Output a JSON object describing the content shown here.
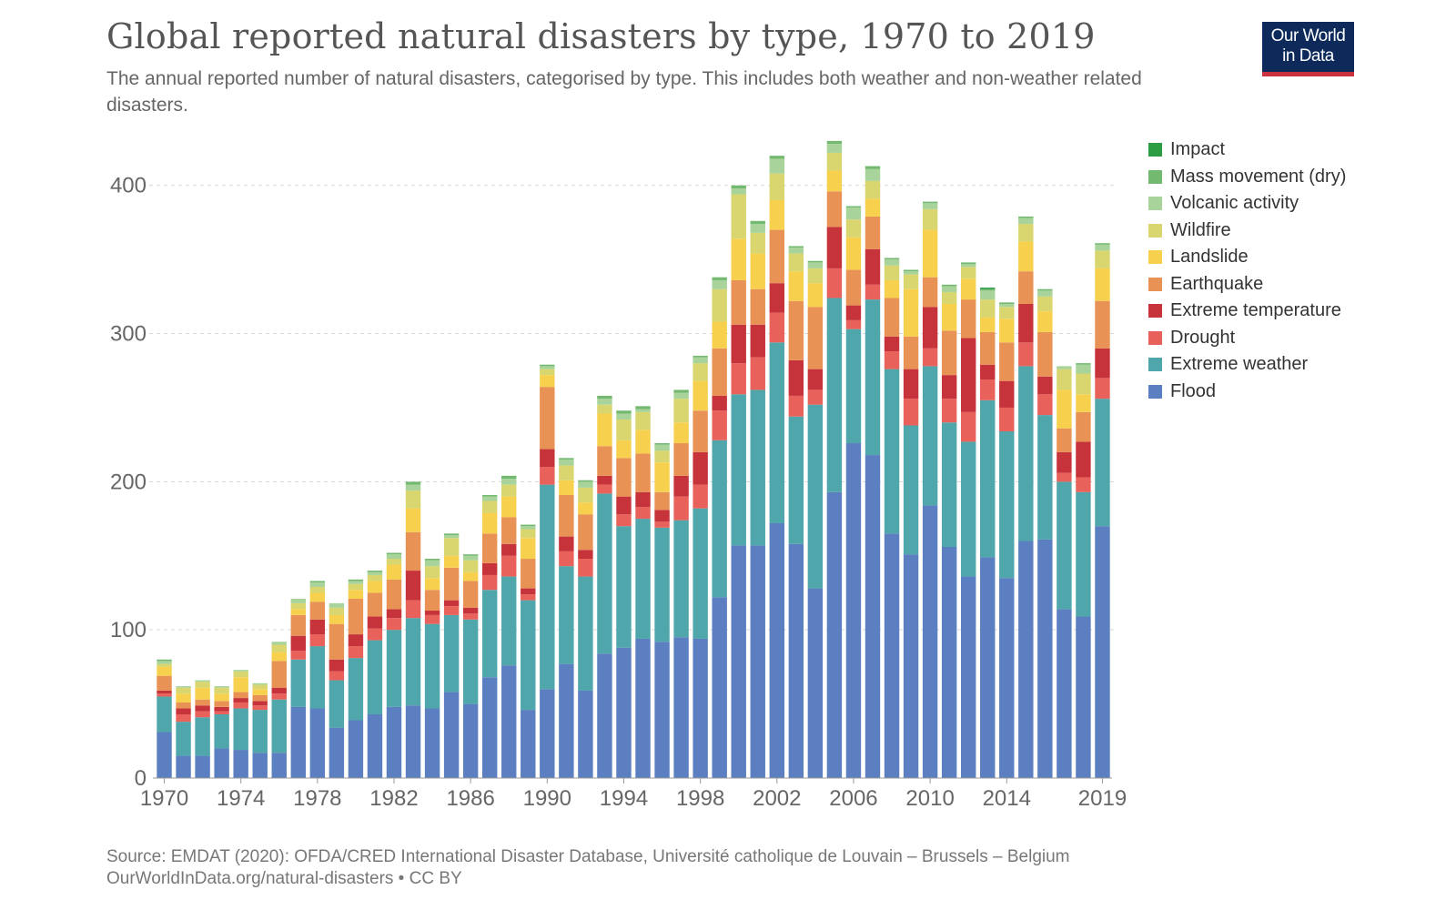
{
  "header": {
    "title": "Global reported natural disasters by type, 1970 to 2019",
    "subtitle": "The annual reported number of natural disasters, categorised by type. This includes both weather and non-weather related disasters.",
    "logo_line1": "Our World",
    "logo_line2": "in Data"
  },
  "footer": {
    "source": "Source: EMDAT (2020): OFDA/CRED International Disaster Database, Université catholique de Louvain – Brussels – Belgium",
    "url": "OurWorldInData.org/natural-disasters • CC BY"
  },
  "legend_order": [
    "Impact",
    "Mass movement (dry)",
    "Volcanic activity",
    "Wildfire",
    "Landslide",
    "Earthquake",
    "Extreme temperature",
    "Drought",
    "Extreme weather",
    "Flood"
  ],
  "chart_data": {
    "type": "bar",
    "stacked": true,
    "title": "Global reported natural disasters by type, 1970 to 2019",
    "xlabel": "",
    "ylabel": "",
    "ylim": [
      0,
      433
    ],
    "yticks": [
      0,
      100,
      200,
      300,
      400
    ],
    "xtick_labels": [
      "1970",
      "1974",
      "1978",
      "1982",
      "1986",
      "1990",
      "1994",
      "1998",
      "2002",
      "2006",
      "2010",
      "2014",
      "2019"
    ],
    "grid": true,
    "legend_position": "right",
    "categories": [
      "1970",
      "1971",
      "1972",
      "1973",
      "1974",
      "1975",
      "1976",
      "1977",
      "1978",
      "1979",
      "1980",
      "1981",
      "1982",
      "1983",
      "1984",
      "1985",
      "1986",
      "1987",
      "1988",
      "1989",
      "1990",
      "1991",
      "1992",
      "1993",
      "1994",
      "1995",
      "1996",
      "1997",
      "1998",
      "1999",
      "2000",
      "2001",
      "2002",
      "2003",
      "2004",
      "2005",
      "2006",
      "2007",
      "2008",
      "2009",
      "2010",
      "2011",
      "2012",
      "2013",
      "2014",
      "2015",
      "2016",
      "2017",
      "2018",
      "2019"
    ],
    "series": [
      {
        "name": "Flood",
        "color": "#5b7fc0",
        "values": [
          31,
          15,
          15,
          20,
          19,
          17,
          17,
          48,
          47,
          34,
          39,
          43,
          48,
          49,
          47,
          58,
          50,
          68,
          76,
          46,
          60,
          77,
          59,
          84,
          88,
          94,
          92,
          95,
          94,
          122,
          157,
          157,
          172,
          158,
          128,
          193,
          226,
          218,
          165,
          151,
          184,
          156,
          136,
          149,
          135,
          160,
          161,
          114,
          109,
          170
        ]
      },
      {
        "name": "Extreme weather",
        "color": "#4fa6ab",
        "values": [
          24,
          23,
          26,
          23,
          28,
          29,
          36,
          32,
          42,
          32,
          42,
          50,
          52,
          59,
          57,
          52,
          57,
          59,
          60,
          74,
          138,
          66,
          77,
          108,
          82,
          81,
          77,
          79,
          88,
          106,
          102,
          105,
          122,
          86,
          124,
          131,
          77,
          105,
          111,
          87,
          94,
          84,
          91,
          106,
          99,
          118,
          84,
          86,
          84,
          86
        ]
      },
      {
        "name": "Drought",
        "color": "#e8615a",
        "values": [
          2,
          5,
          4,
          2,
          4,
          3,
          4,
          6,
          8,
          6,
          8,
          8,
          8,
          12,
          6,
          6,
          4,
          10,
          14,
          4,
          12,
          10,
          12,
          6,
          8,
          8,
          4,
          16,
          16,
          20,
          21,
          22,
          20,
          14,
          10,
          20,
          6,
          10,
          12,
          18,
          12,
          16,
          20,
          14,
          16,
          16,
          14,
          6,
          10,
          14
        ]
      },
      {
        "name": "Extreme temperature",
        "color": "#c7333b",
        "values": [
          2,
          4,
          4,
          3,
          3,
          3,
          4,
          10,
          10,
          8,
          8,
          8,
          6,
          20,
          3,
          4,
          4,
          8,
          8,
          4,
          12,
          10,
          6,
          6,
          12,
          10,
          8,
          14,
          22,
          10,
          26,
          22,
          20,
          24,
          14,
          28,
          10,
          24,
          10,
          20,
          28,
          16,
          50,
          10,
          18,
          26,
          12,
          14,
          24,
          20
        ]
      },
      {
        "name": "Earthquake",
        "color": "#e89355",
        "values": [
          10,
          4,
          4,
          4,
          4,
          4,
          18,
          14,
          12,
          24,
          24,
          16,
          20,
          26,
          14,
          22,
          18,
          20,
          18,
          20,
          42,
          28,
          24,
          20,
          26,
          26,
          12,
          22,
          28,
          32,
          30,
          24,
          36,
          40,
          42,
          24,
          24,
          22,
          26,
          22,
          20,
          30,
          26,
          22,
          26,
          22,
          30,
          16,
          20,
          32
        ]
      },
      {
        "name": "Landslide",
        "color": "#f7d14e",
        "values": [
          6,
          6,
          8,
          5,
          10,
          4,
          6,
          4,
          6,
          6,
          6,
          8,
          10,
          16,
          8,
          8,
          6,
          14,
          14,
          14,
          8,
          10,
          8,
          22,
          12,
          16,
          20,
          14,
          20,
          18,
          28,
          24,
          20,
          20,
          16,
          14,
          22,
          12,
          12,
          32,
          32,
          18,
          14,
          10,
          16,
          20,
          14,
          26,
          12,
          22
        ]
      },
      {
        "name": "Wildfire",
        "color": "#d9d56f",
        "values": [
          2,
          4,
          4,
          4,
          4,
          3,
          5,
          4,
          4,
          5,
          4,
          4,
          4,
          12,
          8,
          12,
          8,
          8,
          8,
          6,
          4,
          10,
          10,
          6,
          14,
          12,
          8,
          16,
          12,
          22,
          30,
          14,
          18,
          12,
          10,
          12,
          12,
          12,
          10,
          10,
          14,
          8,
          8,
          12,
          8,
          12,
          10,
          14,
          14,
          12
        ]
      },
      {
        "name": "Volcanic activity",
        "color": "#a8d39a",
        "values": [
          2,
          1,
          1,
          1,
          1,
          1,
          2,
          3,
          3,
          3,
          2,
          2,
          3,
          4,
          4,
          2,
          3,
          3,
          4,
          2,
          2,
          4,
          4,
          4,
          4,
          2,
          4,
          4,
          4,
          6,
          4,
          6,
          10,
          4,
          4,
          6,
          8,
          8,
          4,
          2,
          4,
          4,
          2,
          6,
          2,
          4,
          4,
          2,
          6,
          4
        ]
      },
      {
        "name": "Mass movement (dry)",
        "color": "#73b96f",
        "values": [
          1,
          0,
          0,
          0,
          0,
          0,
          0,
          0,
          1,
          0,
          1,
          1,
          1,
          2,
          1,
          1,
          1,
          1,
          2,
          1,
          1,
          1,
          1,
          2,
          2,
          2,
          1,
          2,
          1,
          2,
          2,
          2,
          2,
          1,
          1,
          2,
          1,
          2,
          1,
          1,
          1,
          1,
          1,
          1,
          1,
          1,
          1,
          0,
          1,
          1
        ]
      },
      {
        "name": "Impact",
        "color": "#2d9d44",
        "values": [
          0,
          0,
          0,
          0,
          0,
          0,
          0,
          0,
          0,
          0,
          0,
          0,
          0,
          0,
          0,
          0,
          0,
          0,
          0,
          0,
          0,
          0,
          0,
          0,
          0,
          0,
          0,
          0,
          0,
          0,
          0,
          0,
          0,
          0,
          0,
          0,
          0,
          0,
          0,
          0,
          0,
          0,
          0,
          1,
          0,
          0,
          0,
          0,
          0,
          0
        ]
      }
    ]
  }
}
